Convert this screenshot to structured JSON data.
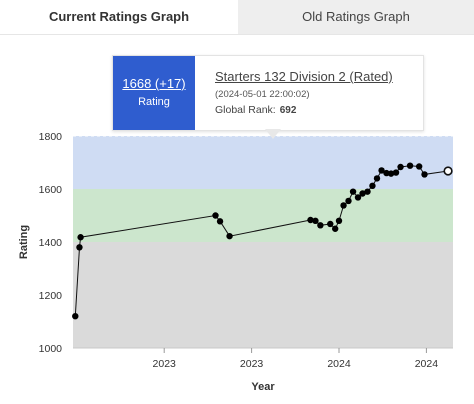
{
  "tabs": {
    "current": "Current Ratings Graph",
    "old": "Old Ratings Graph"
  },
  "tooltip": {
    "rating": "1668 (+17)",
    "rating_label": "Rating",
    "contest": "Starters 132 Division 2 (Rated)",
    "date": "(2024-05-01 22:00:02)",
    "rank_label": "Global Rank:",
    "rank_value": "692"
  },
  "colors": {
    "band_blue": "#cfdcf3",
    "band_green": "#cce6cd",
    "band_gray": "#dadada",
    "accent": "#2f5dcf"
  },
  "chart_data": {
    "type": "line",
    "xlabel": "Year",
    "ylabel": "Rating",
    "ylim": [
      1000,
      1800
    ],
    "yticks": [
      1000,
      1200,
      1400,
      1600,
      1800
    ],
    "xticks": [
      {
        "label": "2023",
        "pos": 0.24
      },
      {
        "label": "2023",
        "pos": 0.47
      },
      {
        "label": "2024",
        "pos": 0.7
      },
      {
        "label": "2024",
        "pos": 0.93
      }
    ],
    "bands": [
      {
        "from": 1600,
        "to": 1800,
        "color": "#cfdcf3"
      },
      {
        "from": 1400,
        "to": 1600,
        "color": "#cce6cd"
      },
      {
        "from": 1000,
        "to": 1400,
        "color": "#dadada"
      }
    ],
    "series": [
      {
        "points": [
          [
            0.006,
            1120
          ],
          [
            0.017,
            1380
          ],
          [
            0.02,
            1418
          ],
          [
            0.375,
            1500
          ],
          [
            0.387,
            1478
          ],
          [
            0.412,
            1422
          ],
          [
            0.625,
            1483
          ],
          [
            0.638,
            1480
          ],
          [
            0.651,
            1463
          ],
          [
            0.677,
            1468
          ],
          [
            0.69,
            1450
          ],
          [
            0.7,
            1480
          ],
          [
            0.712,
            1538
          ],
          [
            0.725,
            1555
          ],
          [
            0.737,
            1590
          ],
          [
            0.75,
            1568
          ],
          [
            0.762,
            1583
          ],
          [
            0.775,
            1590
          ],
          [
            0.788,
            1612
          ],
          [
            0.8,
            1640
          ],
          [
            0.812,
            1670
          ],
          [
            0.825,
            1660
          ],
          [
            0.837,
            1658
          ],
          [
            0.85,
            1662
          ],
          [
            0.862,
            1683
          ],
          [
            0.887,
            1688
          ],
          [
            0.911,
            1685
          ],
          [
            0.925,
            1655
          ],
          [
            0.987,
            1668
          ]
        ],
        "last_point_hollow": true
      }
    ]
  }
}
